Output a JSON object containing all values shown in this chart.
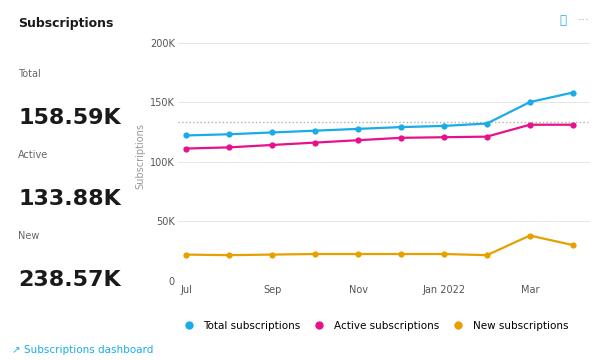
{
  "title": "Subscriptions",
  "stats": [
    {
      "label": "Total",
      "value": "158.59K"
    },
    {
      "label": "Active",
      "value": "133.88K"
    },
    {
      "label": "New",
      "value": "238.57K"
    }
  ],
  "x_positions": [
    0,
    1,
    2,
    3,
    4,
    5,
    6,
    7,
    8,
    9
  ],
  "total_subscriptions": [
    122000,
    123000,
    124500,
    126000,
    127500,
    129000,
    130000,
    132000,
    150000,
    158000
  ],
  "active_subscriptions": [
    111000,
    112000,
    114000,
    116000,
    118000,
    120000,
    120500,
    121000,
    131000,
    131000
  ],
  "new_subscriptions": [
    22000,
    21500,
    22000,
    22500,
    22500,
    22500,
    22500,
    21500,
    38000,
    30000
  ],
  "dotted_line_y": 133000,
  "total_color": "#1aace8",
  "active_color": "#e8118c",
  "new_color": "#e8a000",
  "dotted_color": "#b0b0b0",
  "grid_color": "#e0e0e0",
  "bg_color": "#ffffff",
  "ylabel": "Subscriptions",
  "ylim": [
    0,
    210000
  ],
  "yticks": [
    0,
    50000,
    100000,
    150000,
    200000
  ],
  "ytick_labels": [
    "0",
    "50K",
    "100K",
    "150K",
    "200K"
  ],
  "xtick_positions": [
    0,
    2,
    4,
    6,
    8,
    9
  ],
  "xtick_labels": [
    "Jul",
    "Sep",
    "Nov",
    "Jan 2022",
    "Mar",
    ""
  ],
  "legend_labels": [
    "Total subscriptions",
    "Active subscriptions",
    "New subscriptions"
  ],
  "footer_text": "↗ Subscriptions dashboard",
  "footer_color": "#1aace8",
  "info_color": "#1aace8",
  "title_fontsize": 9,
  "stat_label_fontsize": 7,
  "stat_value_fontsize": 16,
  "tick_fontsize": 7,
  "legend_fontsize": 7.5
}
